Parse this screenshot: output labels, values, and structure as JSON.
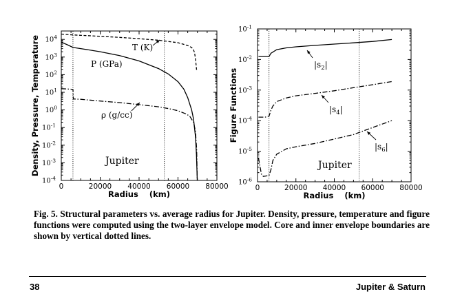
{
  "chart_data": [
    {
      "type": "line",
      "xlabel": "Radius (km)",
      "ylabel": "Density, Pressure, Temperature",
      "xlim": [
        0,
        80000
      ],
      "ylim": [
        0.0001,
        30000
      ],
      "yscale": "log",
      "x_ticks": [
        "0",
        "20000",
        "40000",
        "60000",
        "80000"
      ],
      "y_ticks": [
        {
          "base": "10",
          "exp": "-4",
          "v": -4
        },
        {
          "base": "10",
          "exp": "-3",
          "v": -3
        },
        {
          "base": "10",
          "exp": "-2",
          "v": -2
        },
        {
          "base": "10",
          "exp": "-1",
          "v": -1
        },
        {
          "base": "10",
          "exp": "0",
          "v": 0
        },
        {
          "base": "10",
          "exp": "1",
          "v": 1
        },
        {
          "base": "10",
          "exp": "2",
          "v": 2
        },
        {
          "base": "10",
          "exp": "3",
          "v": 3
        },
        {
          "base": "10",
          "exp": "4",
          "v": 4
        }
      ],
      "boundaries": [
        6000,
        53000
      ],
      "annotation": "Jupiter",
      "series": [
        {
          "name": "T (K)",
          "style": "dashed",
          "x": [
            0,
            3000,
            6000,
            10000,
            20000,
            30000,
            40000,
            50000,
            60000,
            65000,
            67000,
            68000,
            68500,
            69000,
            69600
          ],
          "y": [
            20000,
            19000,
            18000,
            17000,
            15000,
            13000,
            11000,
            9000,
            6500,
            4500,
            3500,
            2500,
            1800,
            800,
            170
          ]
        },
        {
          "name": "P (GPa)",
          "style": "solid",
          "x": [
            0,
            3000,
            6000,
            10000,
            20000,
            30000,
            40000,
            50000,
            55000,
            60000,
            63000,
            65000,
            67000,
            68000,
            69000,
            69500,
            69900
          ],
          "y": [
            7000,
            5000,
            3500,
            3000,
            2000,
            1200,
            600,
            220,
            110,
            40,
            15,
            5,
            1,
            0.3,
            0.03,
            0.003,
            0.0001
          ]
        },
        {
          "name": "ρ (g/cc)",
          "style": "dashdot",
          "x": [
            0,
            5000,
            6000,
            6200,
            10000,
            20000,
            30000,
            40000,
            50000,
            55000,
            60000,
            64000,
            66000,
            68000,
            69000,
            69600,
            69900
          ],
          "y": [
            16,
            15,
            14,
            4.2,
            4.0,
            3.2,
            2.6,
            2.0,
            1.5,
            1.2,
            0.9,
            0.6,
            0.45,
            0.2,
            0.06,
            0.006,
            0.0001
          ]
        }
      ]
    },
    {
      "type": "line",
      "xlabel": "Radius (km)",
      "ylabel": "Figure Functions",
      "xlim": [
        0,
        80000
      ],
      "ylim": [
        1e-06,
        0.1
      ],
      "yscale": "log",
      "x_ticks": [
        "0",
        "20000",
        "40000",
        "60000",
        "80000"
      ],
      "y_ticks": [
        {
          "base": "10",
          "exp": "-6",
          "v": -6
        },
        {
          "base": "10",
          "exp": "-5",
          "v": -5
        },
        {
          "base": "10",
          "exp": "-4",
          "v": -4
        },
        {
          "base": "10",
          "exp": "-3",
          "v": -3
        },
        {
          "base": "10",
          "exp": "-2",
          "v": -2
        },
        {
          "base": "10",
          "exp": "-1",
          "v": -1
        }
      ],
      "boundaries": [
        6000,
        53000
      ],
      "annotation": "Jupiter",
      "series": [
        {
          "name": "|s2|",
          "style": "solid",
          "x": [
            500,
            4000,
            6000,
            7000,
            10000,
            15000,
            20000,
            30000,
            40000,
            50000,
            60000,
            70000
          ],
          "y": [
            0.0125,
            0.0125,
            0.0125,
            0.016,
            0.021,
            0.024,
            0.026,
            0.029,
            0.032,
            0.035,
            0.039,
            0.045
          ]
        },
        {
          "name": "|s4|",
          "style": "dashdot",
          "x": [
            500,
            4000,
            6000,
            7000,
            8000,
            10000,
            15000,
            20000,
            30000,
            40000,
            50000,
            60000,
            70000
          ],
          "y": [
            0.00013,
            0.00013,
            0.00014,
            0.00022,
            0.0003,
            0.00042,
            0.00055,
            0.00065,
            0.00078,
            0.00095,
            0.0012,
            0.0015,
            0.0019
          ]
        },
        {
          "name": "|s6|",
          "style": "dashdot",
          "x": [
            500,
            2000,
            3000,
            6000,
            7000,
            8000,
            10000,
            15000,
            20000,
            30000,
            40000,
            50000,
            60000,
            70000
          ],
          "y": [
            6e-06,
            1.8e-06,
            1.5e-06,
            1.6e-06,
            2.5e-06,
            5e-06,
            8e-06,
            1.2e-05,
            1.4e-05,
            1.8e-05,
            2.5e-05,
            3.5e-05,
            6e-05,
            0.0001
          ]
        }
      ]
    }
  ],
  "caption": {
    "label": "Fig. 5.",
    "text": "Structural parameters vs. average radius for Jupiter. Density, pressure, temperature and figure functions were computed using the two-layer envelope model. Core and inner envelope boundaries are shown by vertical dotted lines."
  },
  "footer": {
    "page_number": "38",
    "running_title": "Jupiter & Saturn"
  }
}
